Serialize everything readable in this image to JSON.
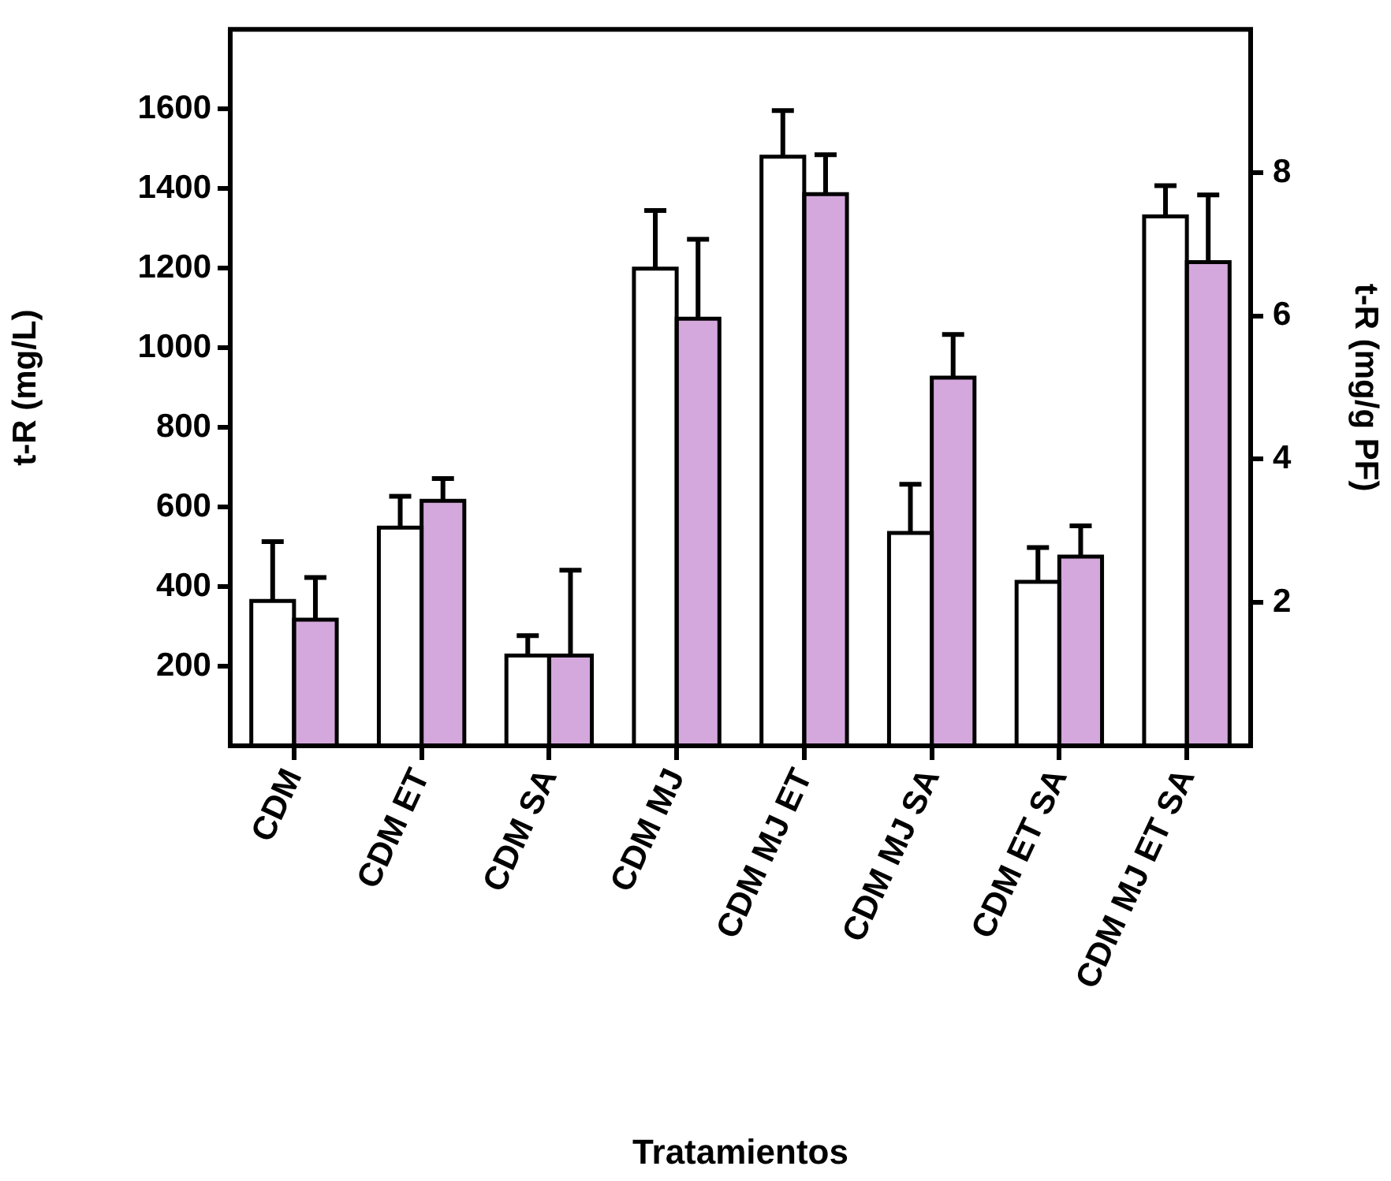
{
  "chart_data": {
    "type": "bar",
    "xlabel": "Tratamientos",
    "ylabel": "t-R (mg/L)",
    "y2label": "t-R (mg/g PF)",
    "categories": [
      "CDM",
      "CDM ET",
      "CDM SA",
      "CDM MJ",
      "CDM MJ ET",
      "CDM MJ SA",
      "CDM ET SA",
      "CDM MJ ET SA"
    ],
    "series": [
      {
        "color": "#ffffff",
        "values": [
          364,
          548,
          227,
          1199,
          1480,
          535,
          412,
          1330
        ],
        "errors": [
          [
            364,
            513
          ],
          [
            548,
            627
          ],
          [
            227,
            277
          ],
          [
            1199,
            1345
          ],
          [
            1480,
            1596
          ],
          [
            535,
            657
          ],
          [
            412,
            498
          ],
          [
            1330,
            1407
          ]
        ]
      },
      {
        "color": "#d4a8dc",
        "axis": "y2",
        "values": [
          1.76,
          3.42,
          1.26,
          5.96,
          7.7,
          5.14,
          2.64,
          6.75
        ],
        "errors": [
          [
            1.76,
            2.35
          ],
          [
            3.42,
            3.73
          ],
          [
            1.26,
            2.45
          ],
          [
            5.96,
            7.07
          ],
          [
            7.7,
            8.25
          ],
          [
            5.14,
            5.74
          ],
          [
            2.64,
            3.07
          ],
          [
            6.75,
            7.69
          ]
        ]
      }
    ],
    "ylim": [
      0,
      1800
    ],
    "yticks": [
      200,
      400,
      600,
      800,
      1000,
      1200,
      1400,
      1600
    ],
    "y2lim": [
      0,
      10
    ],
    "y2ticks": [
      2,
      4,
      6,
      8
    ],
    "grid": false,
    "legend": false
  }
}
